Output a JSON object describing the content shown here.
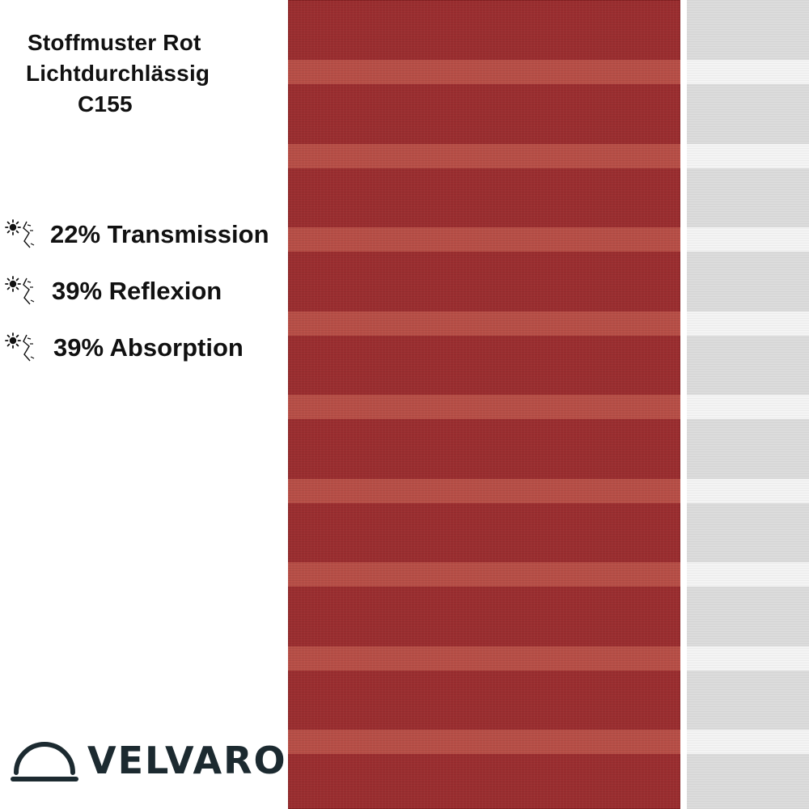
{
  "title": {
    "line1": "Stoffmuster Rot",
    "line2": "Lichtdurchlässig",
    "line3": "C155"
  },
  "stats": [
    {
      "icon": "sun-light-icon",
      "label": "22% Transmission"
    },
    {
      "icon": "sun-light-icon",
      "label": "39% Reflexion"
    },
    {
      "icon": "sun-light-icon",
      "label": "39% Absorption"
    }
  ],
  "brand": {
    "name": "VELVARO",
    "icon": "dome-logo-icon",
    "color": "#1c2a30"
  },
  "fabric": {
    "red_base": "#9b2e30",
    "red_stripe": "#b84f47",
    "white_base": "#dcdcdc",
    "white_stripe": "#f4f4f4"
  }
}
